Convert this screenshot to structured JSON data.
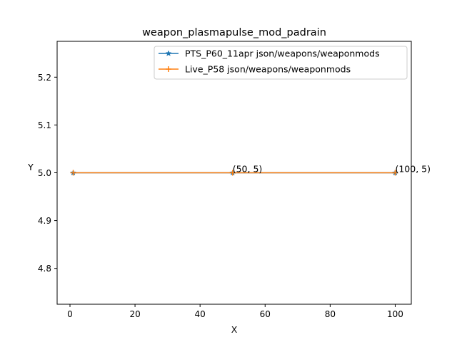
{
  "chart_data": {
    "type": "line",
    "title": "weapon_plasmapulse_mod_padrain",
    "xlabel": "X",
    "ylabel": "Y",
    "xlim": [
      -3.95,
      104.95
    ],
    "ylim": [
      4.725,
      5.275
    ],
    "xticks": [
      0,
      20,
      40,
      60,
      80,
      100
    ],
    "yticks": [
      4.8,
      4.9,
      5.0,
      5.1,
      5.2
    ],
    "ytick_labels": [
      "4.8",
      "4.9",
      "5.0",
      "5.1",
      "5.2"
    ],
    "grid": false,
    "legend_position": "upper right",
    "series": [
      {
        "name": "PTS_P60_11apr json/weapons/weaponmods",
        "color": "#1f77b4",
        "marker": "star",
        "x": [
          1,
          50,
          100
        ],
        "y": [
          5,
          5,
          5
        ]
      },
      {
        "name": "Live_P58 json/weapons/weaponmods",
        "color": "#ff7f0e",
        "marker": "plus",
        "x": [
          1,
          50,
          100
        ],
        "y": [
          5,
          5,
          5
        ]
      }
    ],
    "annotations": [
      {
        "x": 50,
        "y": 5,
        "text": "(50, 5)"
      },
      {
        "x": 100,
        "y": 5,
        "text": "(100, 5)"
      }
    ]
  }
}
